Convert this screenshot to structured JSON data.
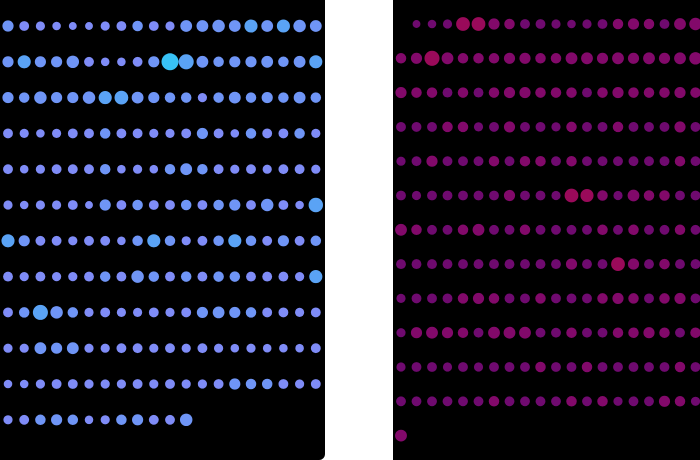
{
  "colors": {
    "page_background": "#ffffff",
    "panel_background": "#000000",
    "left_palette": [
      "#9b6cf7",
      "#8b7ff8",
      "#7f8cf7",
      "#6f95f6",
      "#5aa3f5",
      "#38c2f5"
    ],
    "right_palette": [
      "#4a0873",
      "#5b0a7a",
      "#6f0a6f",
      "#82096a",
      "#9a0a5a",
      "#c8103c"
    ]
  },
  "left_grid": {
    "columns": 20,
    "rows": [
      [
        0.55,
        0.45,
        0.4,
        0.35,
        0.3,
        0.3,
        0.4,
        0.45,
        0.5,
        0.45,
        0.4,
        0.6,
        0.6,
        0.65,
        0.6,
        0.7,
        0.6,
        0.7,
        0.65,
        0.6
      ],
      [
        0.55,
        0.7,
        0.55,
        0.55,
        0.65,
        0.45,
        0.35,
        0.35,
        0.45,
        0.55,
        1.0,
        0.85,
        0.6,
        0.5,
        0.55,
        0.55,
        0.6,
        0.5,
        0.6,
        0.7
      ],
      [
        0.55,
        0.5,
        0.65,
        0.55,
        0.55,
        0.65,
        0.7,
        0.75,
        0.6,
        0.55,
        0.5,
        0.5,
        0.4,
        0.5,
        0.6,
        0.5,
        0.55,
        0.5,
        0.6,
        0.5
      ],
      [
        0.45,
        0.4,
        0.35,
        0.4,
        0.45,
        0.45,
        0.5,
        0.45,
        0.45,
        0.4,
        0.4,
        0.45,
        0.55,
        0.45,
        0.35,
        0.5,
        0.45,
        0.45,
        0.5,
        0.4
      ],
      [
        0.45,
        0.35,
        0.4,
        0.45,
        0.45,
        0.45,
        0.5,
        0.35,
        0.4,
        0.35,
        0.5,
        0.6,
        0.5,
        0.45,
        0.4,
        0.45,
        0.4,
        0.45,
        0.45,
        0.4
      ],
      [
        0.4,
        0.35,
        0.4,
        0.4,
        0.45,
        0.3,
        0.55,
        0.45,
        0.5,
        0.45,
        0.45,
        0.5,
        0.45,
        0.5,
        0.55,
        0.45,
        0.65,
        0.45,
        0.35,
        0.8
      ],
      [
        0.7,
        0.55,
        0.45,
        0.45,
        0.4,
        0.45,
        0.45,
        0.35,
        0.5,
        0.7,
        0.5,
        0.4,
        0.45,
        0.5,
        0.7,
        0.5,
        0.45,
        0.55,
        0.45,
        0.5
      ],
      [
        0.45,
        0.4,
        0.45,
        0.4,
        0.4,
        0.45,
        0.5,
        0.45,
        0.65,
        0.5,
        0.45,
        0.5,
        0.45,
        0.5,
        0.5,
        0.45,
        0.45,
        0.45,
        0.4,
        0.7
      ],
      [
        0.45,
        0.5,
        0.85,
        0.65,
        0.5,
        0.4,
        0.45,
        0.4,
        0.4,
        0.45,
        0.4,
        0.45,
        0.55,
        0.6,
        0.55,
        0.5,
        0.45,
        0.45,
        0.4,
        0.45
      ],
      [
        0.4,
        0.4,
        0.6,
        0.55,
        0.6,
        0.4,
        0.4,
        0.45,
        0.45,
        0.4,
        0.45,
        0.4,
        0.45,
        0.4,
        0.35,
        0.4,
        0.35,
        0.35,
        0.35,
        0.45
      ],
      [
        0.35,
        0.35,
        0.4,
        0.45,
        0.45,
        0.4,
        0.4,
        0.4,
        0.45,
        0.4,
        0.45,
        0.4,
        0.4,
        0.45,
        0.55,
        0.5,
        0.5,
        0.45,
        0.4,
        0.45
      ],
      [
        0.4,
        0.45,
        0.5,
        0.55,
        0.5,
        0.35,
        0.4,
        0.5,
        0.55,
        0.45,
        0.45,
        0.65
      ]
    ]
  },
  "right_grid": {
    "columns": 20,
    "rows": [
      [
        0.0,
        0.3,
        0.35,
        0.4,
        0.75,
        0.75,
        0.55,
        0.5,
        0.45,
        0.45,
        0.4,
        0.35,
        0.4,
        0.45,
        0.5,
        0.55,
        0.5,
        0.45,
        0.6,
        0.65
      ],
      [
        0.5,
        0.55,
        0.85,
        0.6,
        0.5,
        0.5,
        0.5,
        0.55,
        0.55,
        0.5,
        0.5,
        0.6,
        0.6,
        0.55,
        0.6,
        0.55,
        0.6,
        0.55,
        0.6,
        0.65
      ],
      [
        0.55,
        0.5,
        0.5,
        0.45,
        0.5,
        0.45,
        0.5,
        0.55,
        0.55,
        0.5,
        0.5,
        0.5,
        0.45,
        0.5,
        0.55,
        0.5,
        0.5,
        0.5,
        0.55,
        0.5
      ],
      [
        0.45,
        0.45,
        0.45,
        0.5,
        0.5,
        0.4,
        0.45,
        0.55,
        0.45,
        0.45,
        0.4,
        0.5,
        0.45,
        0.45,
        0.5,
        0.45,
        0.45,
        0.45,
        0.55,
        0.45
      ],
      [
        0.4,
        0.45,
        0.55,
        0.45,
        0.45,
        0.45,
        0.5,
        0.45,
        0.5,
        0.5,
        0.45,
        0.5,
        0.45,
        0.45,
        0.45,
        0.45,
        0.45,
        0.45,
        0.5,
        0.45
      ],
      [
        0.45,
        0.4,
        0.45,
        0.45,
        0.45,
        0.45,
        0.45,
        0.55,
        0.45,
        0.45,
        0.4,
        0.75,
        0.7,
        0.5,
        0.4,
        0.6,
        0.5,
        0.5,
        0.45,
        0.45
      ],
      [
        0.6,
        0.5,
        0.45,
        0.45,
        0.5,
        0.6,
        0.45,
        0.45,
        0.5,
        0.45,
        0.45,
        0.45,
        0.45,
        0.5,
        0.45,
        0.5,
        0.45,
        0.45,
        0.5,
        0.45
      ],
      [
        0.45,
        0.45,
        0.45,
        0.45,
        0.45,
        0.45,
        0.45,
        0.45,
        0.45,
        0.45,
        0.45,
        0.55,
        0.45,
        0.45,
        0.75,
        0.55,
        0.45,
        0.5,
        0.45,
        0.45
      ],
      [
        0.4,
        0.45,
        0.45,
        0.45,
        0.5,
        0.55,
        0.5,
        0.45,
        0.45,
        0.5,
        0.45,
        0.45,
        0.45,
        0.5,
        0.55,
        0.5,
        0.45,
        0.5,
        0.55,
        0.45
      ],
      [
        0.4,
        0.55,
        0.6,
        0.55,
        0.5,
        0.45,
        0.6,
        0.6,
        0.6,
        0.45,
        0.45,
        0.5,
        0.45,
        0.45,
        0.5,
        0.5,
        0.55,
        0.5,
        0.45,
        0.5
      ],
      [
        0.4,
        0.45,
        0.45,
        0.4,
        0.45,
        0.4,
        0.45,
        0.45,
        0.45,
        0.5,
        0.45,
        0.45,
        0.5,
        0.45,
        0.45,
        0.45,
        0.45,
        0.45,
        0.5,
        0.45
      ],
      [
        0.45,
        0.45,
        0.45,
        0.45,
        0.45,
        0.45,
        0.5,
        0.45,
        0.45,
        0.45,
        0.45,
        0.5,
        0.45,
        0.5,
        0.4,
        0.45,
        0.45,
        0.55,
        0.5,
        0.4
      ],
      [
        0.6
      ]
    ]
  }
}
